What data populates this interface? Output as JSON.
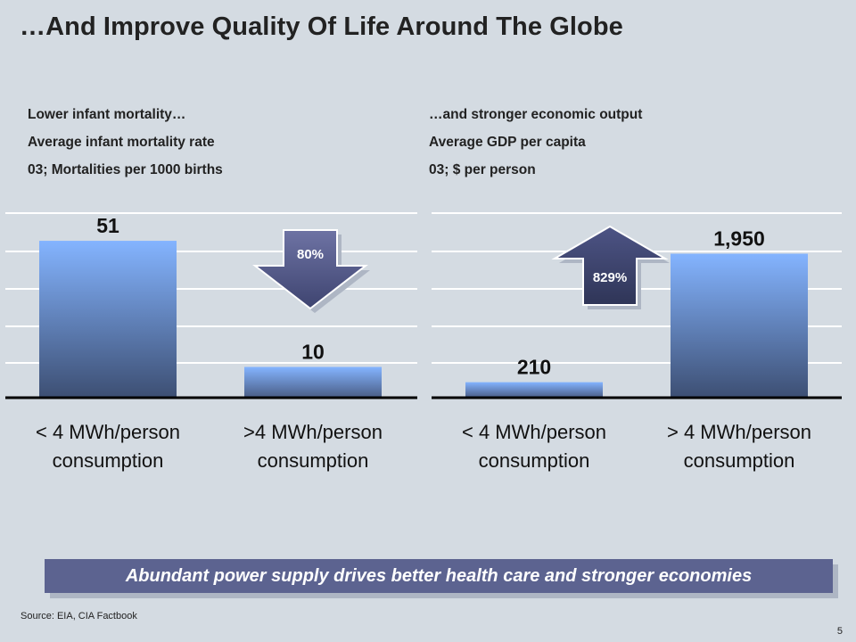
{
  "title": "…And Improve Quality Of Life Around The Globe",
  "left_panel": {
    "subtitle_lines": [
      "Lower infant mortality…",
      "Average infant mortality rate",
      "03; Mortalities per 1000 births"
    ],
    "change_label": "80%"
  },
  "right_panel": {
    "subtitle_lines": [
      "…and stronger economic output",
      "Average GDP per capita",
      "03; $ per person"
    ],
    "change_label": "829%"
  },
  "chart_data": [
    {
      "type": "bar",
      "title": "Lower infant mortality…",
      "categories": [
        "< 4 MWh/person consumption",
        "> 4 MWh/person consumption"
      ],
      "category_lines": [
        [
          "< 4 MWh/person",
          "consumption"
        ],
        [
          ">4 MWh/person",
          "consumption"
        ]
      ],
      "values": [
        51,
        10
      ],
      "value_labels": [
        "51",
        "10"
      ],
      "ylim": [
        0,
        60
      ],
      "grid": true,
      "annotation": {
        "label": "80%",
        "direction": "down"
      }
    },
    {
      "type": "bar",
      "title": "…and stronger economic output",
      "categories": [
        "< 4 MWh/person consumption",
        "> 4 MWh/person consumption"
      ],
      "category_lines": [
        [
          "< 4 MWh/person",
          "consumption"
        ],
        [
          "> 4 MWh/person",
          "consumption"
        ]
      ],
      "values": [
        210,
        1950
      ],
      "value_labels": [
        "210",
        "1,950"
      ],
      "ylim": [
        0,
        2500
      ],
      "grid": true,
      "annotation": {
        "label": "829%",
        "direction": "up"
      }
    }
  ],
  "banner": "Abundant power supply drives better health care and stronger economies",
  "source": "Source: EIA, CIA Factbook",
  "page_number": "5",
  "colors": {
    "background": "#d4dbe2",
    "bar_top": "#84b4ff",
    "bar_bottom": "#3d4f73",
    "arrow": "#4d5485",
    "banner": "#5c6390"
  }
}
